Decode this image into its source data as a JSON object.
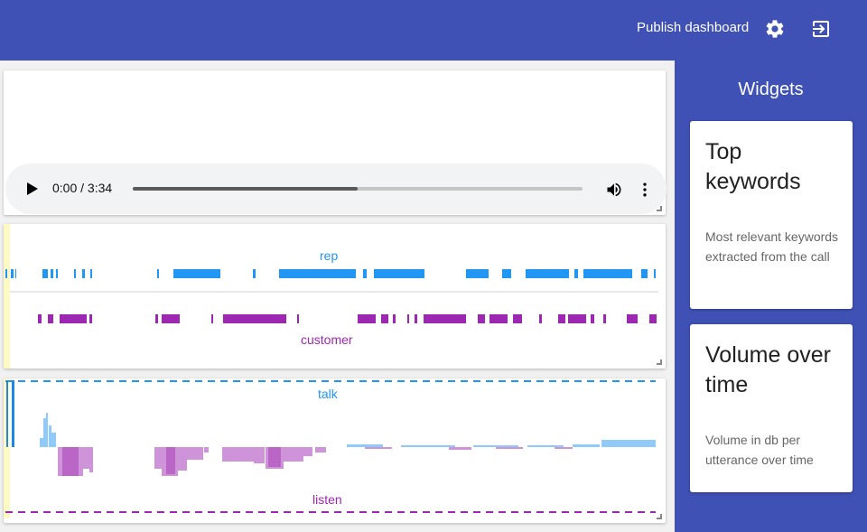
{
  "header": {
    "publish_label": "Publish dashboard",
    "settings_icon": "gear-icon",
    "logout_icon": "exit-icon"
  },
  "audio": {
    "time_display": "0:00 / 3:34",
    "progress_fraction": 0.5,
    "controls": [
      "play-icon",
      "volume-icon",
      "more-vert-icon"
    ]
  },
  "speaker_timeline": {
    "top_label": "rep",
    "bottom_label": "customer",
    "colors": {
      "rep": "#2196f3",
      "customer": "#9c27b0"
    }
  },
  "talk_listen": {
    "top_label": "talk",
    "bottom_label": "listen",
    "colors": {
      "talk": "#2196f3",
      "listen": "#9c27b0",
      "marker": "#fff59d"
    }
  },
  "sidebar": {
    "title": "Widgets",
    "widgets": [
      {
        "title": "Top keywords",
        "description": "Most relevant keywords extracted from the call"
      },
      {
        "title": "Volume over time",
        "description": "Volume in db per utterance over time"
      }
    ]
  }
}
